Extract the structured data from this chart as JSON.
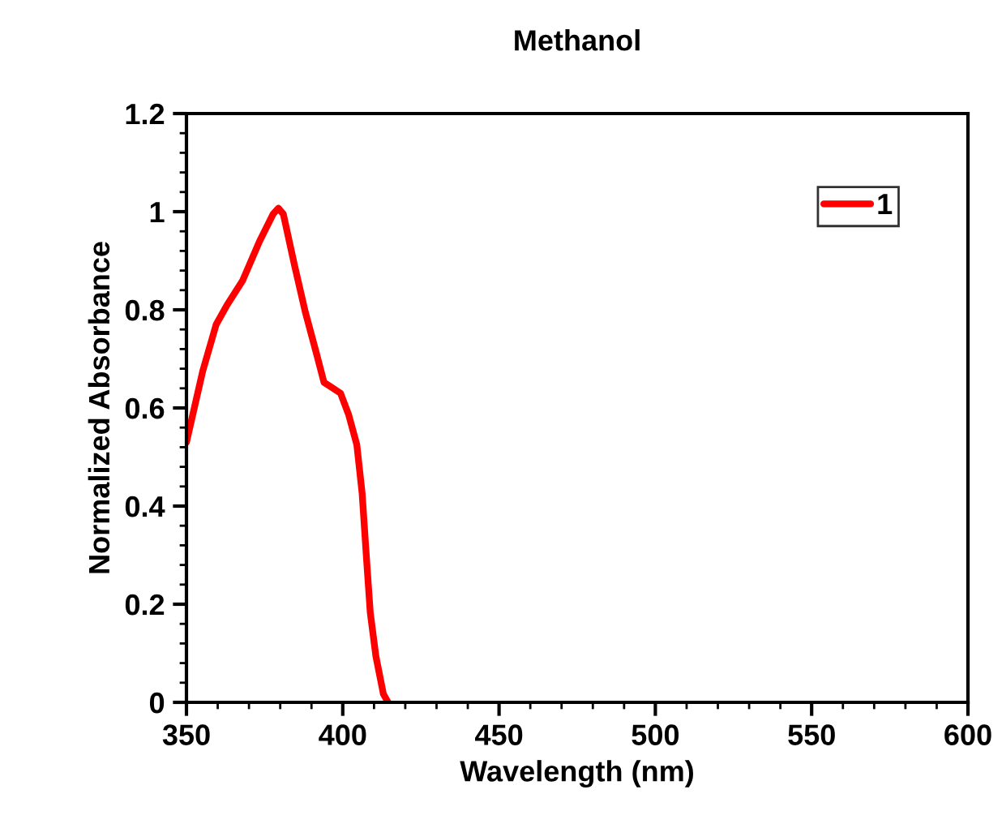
{
  "chart_data": {
    "type": "line",
    "title": "Methanol",
    "xlabel": "Wavelength (nm)",
    "ylabel": "Normalized Absorbance",
    "xlim": [
      350,
      600
    ],
    "xticks": [
      350,
      400,
      450,
      500,
      550,
      600
    ],
    "ylim": [
      0,
      1.2
    ],
    "yticks": [
      0,
      0.2,
      0.4,
      0.6,
      0.8,
      1,
      1.2
    ],
    "grid": false,
    "legend": "top right",
    "marker": "none",
    "line_style": "solid",
    "series": [
      {
        "name": "1",
        "color": "#ff0000",
        "x": [
          350,
          355.2,
          359.5,
          363,
          368,
          373.4,
          377.7,
          379.4,
          381,
          384.6,
          388,
          391.5,
          394,
          396.7,
          399.3,
          401.9,
          404.5,
          406.2,
          407.6,
          408.8,
          410.6,
          413,
          414.5
        ],
        "values": [
          0.53,
          0.675,
          0.77,
          0.81,
          0.86,
          0.94,
          0.995,
          1.007,
          0.995,
          0.89,
          0.796,
          0.713,
          0.652,
          0.641,
          0.63,
          0.586,
          0.525,
          0.426,
          0.293,
          0.183,
          0.094,
          0.017,
          0
        ]
      }
    ]
  }
}
